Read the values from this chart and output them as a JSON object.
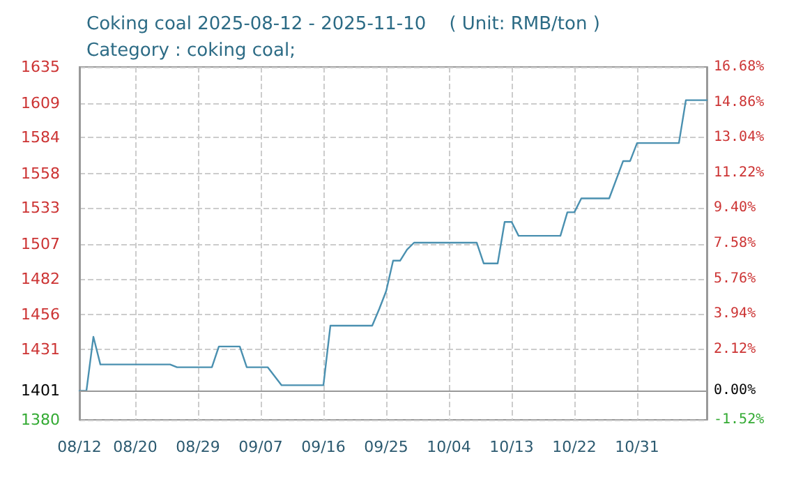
{
  "chart_data": {
    "type": "line",
    "title": "Coking coal 2025-08-12 - 2025-11-10    ( Unit: RMB/ton )",
    "subtitle": "Category : coking coal;",
    "x": [
      "2025-08-12",
      "2025-08-13",
      "2025-08-14",
      "2025-08-15",
      "2025-08-25",
      "2025-08-26",
      "2025-08-31",
      "2025-09-01",
      "2025-09-04",
      "2025-09-05",
      "2025-09-08",
      "2025-09-10",
      "2025-09-16",
      "2025-09-17",
      "2025-09-23",
      "2025-09-24",
      "2025-09-25",
      "2025-09-26",
      "2025-09-27",
      "2025-09-28",
      "2025-09-29",
      "2025-10-08",
      "2025-10-09",
      "2025-10-11",
      "2025-10-12",
      "2025-10-13",
      "2025-10-14",
      "2025-10-20",
      "2025-10-21",
      "2025-10-22",
      "2025-10-23",
      "2025-10-27",
      "2025-10-29",
      "2025-10-30",
      "2025-10-31",
      "2025-11-06",
      "2025-11-07",
      "2025-11-10"
    ],
    "series": [
      {
        "color": "#4a90b0",
        "values": [
          1401,
          1401,
          1440,
          1420,
          1420,
          1418,
          1418,
          1433,
          1433,
          1418,
          1418,
          1405,
          1405,
          1448,
          1448,
          1460,
          1473,
          1495,
          1495,
          1503,
          1508,
          1508,
          1493,
          1493,
          1523,
          1523,
          1513,
          1513,
          1530,
          1530,
          1540,
          1540,
          1567,
          1567,
          1580,
          1580,
          1611,
          1611
        ]
      }
    ],
    "xlim": [
      "2025-08-12",
      "2025-11-10"
    ],
    "xticks": [
      {
        "value": "2025-08-12",
        "label": "08/12"
      },
      {
        "value": "2025-08-20",
        "label": "08/20"
      },
      {
        "value": "2025-08-29",
        "label": "08/29"
      },
      {
        "value": "2025-09-07",
        "label": "09/07"
      },
      {
        "value": "2025-09-16",
        "label": "09/16"
      },
      {
        "value": "2025-09-25",
        "label": "09/25"
      },
      {
        "value": "2025-10-04",
        "label": "10/04"
      },
      {
        "value": "2025-10-13",
        "label": "10/13"
      },
      {
        "value": "2025-10-22",
        "label": "10/22"
      },
      {
        "value": "2025-10-31",
        "label": "10/31"
      }
    ],
    "ylim": [
      1380,
      1635
    ],
    "yticks": [
      1380,
      1401,
      1431,
      1456,
      1482,
      1507,
      1533,
      1558,
      1584,
      1609,
      1635
    ],
    "y2lim": [
      -1.52,
      16.68
    ],
    "y2ticks": [
      {
        "value": -1.52,
        "label": "-1.52%"
      },
      {
        "value": 0,
        "label": "0.00%"
      },
      {
        "value": 2.12,
        "label": "2.12%"
      },
      {
        "value": 3.94,
        "label": "3.94%"
      },
      {
        "value": 5.76,
        "label": "5.76%"
      },
      {
        "value": 7.58,
        "label": "7.58%"
      },
      {
        "value": 9.4,
        "label": "9.40%"
      },
      {
        "value": 11.22,
        "label": "11.22%"
      },
      {
        "value": 13.04,
        "label": "13.04%"
      },
      {
        "value": 14.86,
        "label": "14.86%"
      },
      {
        "value": 16.68,
        "label": "16.68%"
      }
    ],
    "ref_lines": [
      {
        "axis": "y",
        "value": 1401,
        "color": "#999999"
      }
    ],
    "grid": true,
    "marker": "none",
    "line_style": "solid"
  }
}
